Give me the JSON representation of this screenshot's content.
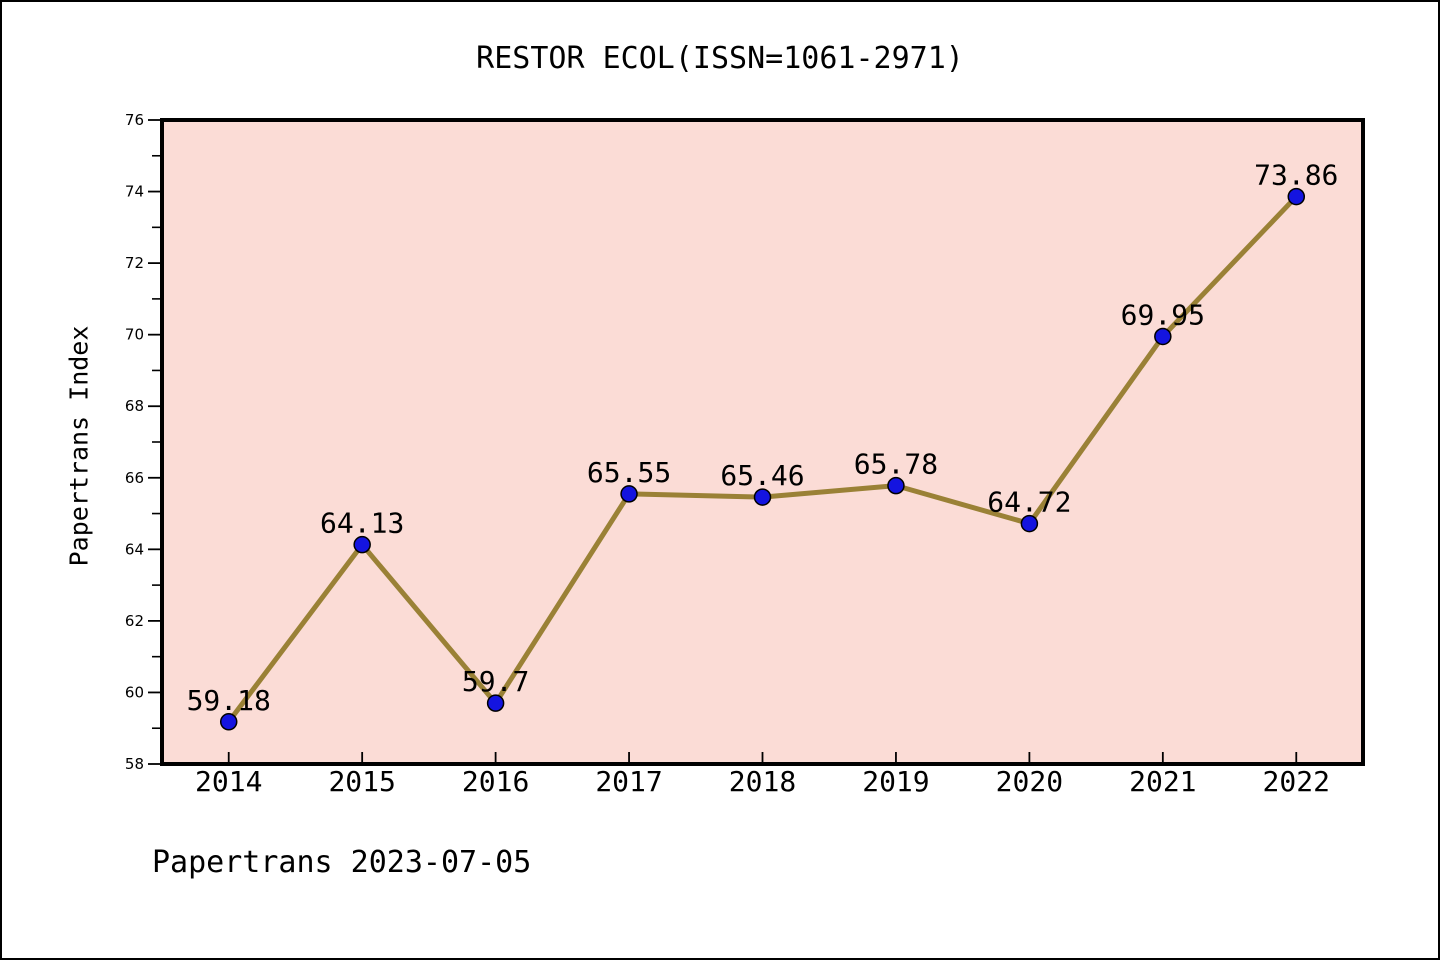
{
  "title": "RESTOR ECOL(ISSN=1061-2971)",
  "footer": "Papertrans 2023-07-05",
  "y_axis_label": "Papertrans Index",
  "chart_data": {
    "type": "line",
    "title": "RESTOR ECOL(ISSN=1061-2971)",
    "xlabel": "",
    "ylabel": "Papertrans Index",
    "x": [
      2014,
      2015,
      2016,
      2017,
      2018,
      2019,
      2020,
      2021,
      2022
    ],
    "values": [
      59.18,
      64.13,
      59.7,
      65.55,
      65.46,
      65.78,
      64.72,
      69.95,
      73.86
    ],
    "point_labels": [
      "59.18",
      "64.13",
      "59.7",
      "65.55",
      "65.46",
      "65.78",
      "64.72",
      "69.95",
      "73.86"
    ],
    "ylim": [
      58,
      76
    ],
    "xlim": [
      2013.5,
      2022.5
    ],
    "ytick_major_step": 2,
    "ytick_minor_step": 1,
    "yticks": [
      58,
      60,
      62,
      64,
      66,
      68,
      70,
      72,
      74,
      76
    ],
    "grid": false,
    "legend_position": "none",
    "colors": {
      "plot_background": "#fbdcd6",
      "line": "#9a8136",
      "marker_fill": "#1414e0",
      "marker_edge": "#000000",
      "axis": "#000000",
      "text": "#000000"
    }
  }
}
